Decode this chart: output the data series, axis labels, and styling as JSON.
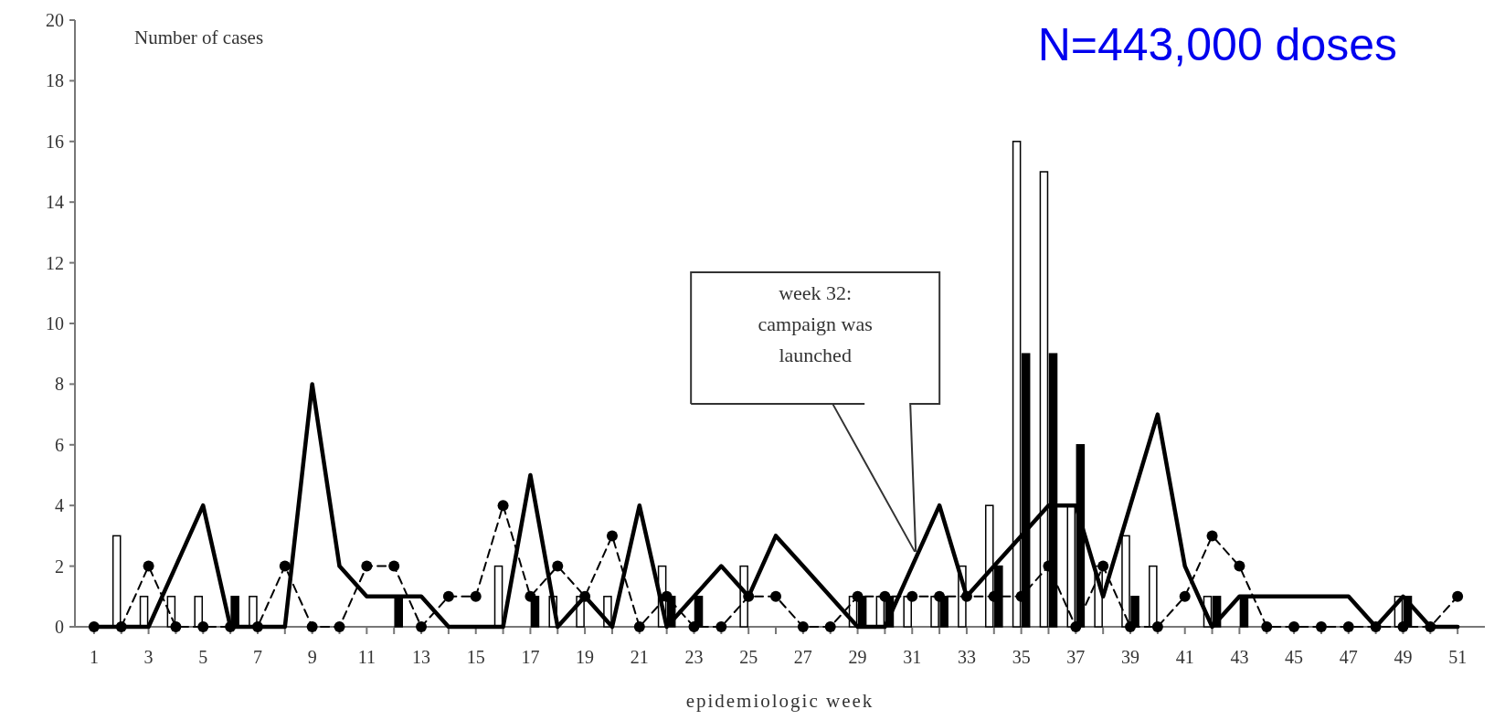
{
  "chart_data": {
    "type": "bar",
    "title": "N=443,000 doses",
    "ylabel": "Number of cases",
    "xlabel": "epidemiologic week",
    "annotations": [
      "week 32: campaign was launched"
    ],
    "x": [
      1,
      2,
      3,
      4,
      5,
      6,
      7,
      8,
      9,
      10,
      11,
      12,
      13,
      14,
      15,
      16,
      17,
      18,
      19,
      20,
      21,
      22,
      23,
      24,
      25,
      26,
      27,
      28,
      29,
      30,
      31,
      32,
      33,
      34,
      35,
      36,
      37,
      38,
      39,
      40,
      41,
      42,
      43,
      44,
      45,
      46,
      47,
      48,
      49,
      50,
      51
    ],
    "xlim": [
      0.3,
      52
    ],
    "xticks": [
      1,
      3,
      5,
      7,
      9,
      11,
      13,
      15,
      17,
      19,
      21,
      23,
      25,
      27,
      29,
      31,
      33,
      35,
      37,
      39,
      41,
      43,
      45,
      47,
      49,
      51
    ],
    "ylim": [
      0,
      20
    ],
    "yticks": [
      0,
      2,
      4,
      6,
      8,
      10,
      12,
      14,
      16,
      18,
      20
    ],
    "series": [
      {
        "color": "#ffffff",
        "values": [
          0,
          3,
          1,
          1,
          1,
          0,
          1,
          0,
          0,
          0,
          0,
          0,
          0,
          0,
          0,
          2,
          0,
          1,
          1,
          1,
          0,
          2,
          0,
          0,
          2,
          0,
          0,
          0,
          1,
          1,
          1,
          1,
          2,
          4,
          16,
          15,
          4,
          2,
          3,
          2,
          0,
          1,
          0,
          0,
          0,
          0,
          0,
          0,
          1,
          0,
          0
        ]
      },
      {
        "color": "#000000",
        "values": [
          0,
          0,
          0,
          0,
          0,
          1,
          0,
          0,
          0,
          0,
          0,
          1,
          0,
          0,
          0,
          0,
          1,
          0,
          0,
          0,
          0,
          1,
          1,
          0,
          0,
          0,
          0,
          0,
          1,
          1,
          0,
          1,
          0,
          2,
          9,
          9,
          6,
          0,
          1,
          0,
          0,
          1,
          1,
          0,
          0,
          0,
          0,
          0,
          1,
          0,
          0
        ]
      },
      {
        "type": "line",
        "color": "#000000",
        "line_style": "solid",
        "values": [
          0,
          0,
          0,
          2,
          4,
          0,
          0,
          0,
          8,
          2,
          1,
          1,
          1,
          0,
          0,
          0,
          5,
          0,
          1,
          0,
          4,
          0,
          1,
          2,
          1,
          3,
          2,
          1,
          0,
          0,
          2,
          4,
          1,
          2,
          3,
          4,
          4,
          1,
          4,
          7,
          2,
          0,
          1,
          1,
          1,
          1,
          1,
          0,
          1,
          0,
          0
        ]
      },
      {
        "type": "line",
        "color": "#000000",
        "line_style": "dashed",
        "marker": "circle",
        "values": [
          0,
          0,
          2,
          0,
          0,
          0,
          0,
          2,
          0,
          0,
          2,
          2,
          0,
          1,
          1,
          4,
          1,
          2,
          1,
          3,
          0,
          1,
          0,
          0,
          1,
          1,
          0,
          0,
          1,
          1,
          1,
          1,
          1,
          1,
          1,
          2,
          0,
          2,
          0,
          0,
          1,
          3,
          2,
          0,
          0,
          0,
          0,
          0,
          0,
          0,
          1
        ]
      }
    ]
  }
}
